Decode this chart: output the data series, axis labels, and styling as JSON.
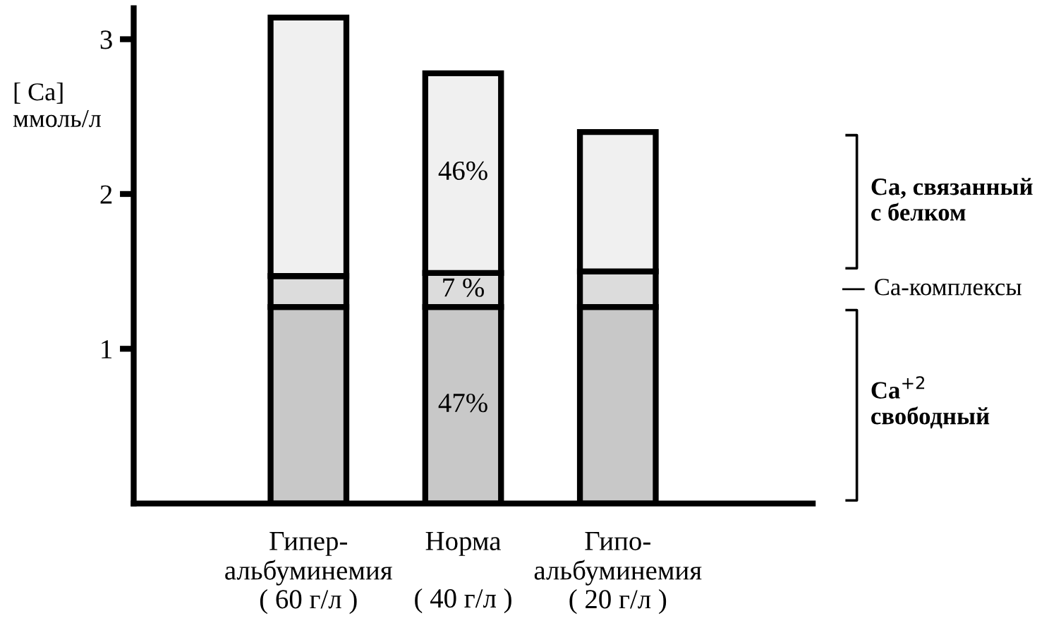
{
  "chart_data": {
    "type": "bar",
    "stacked": true,
    "ylabel": "[ Ca]\nммоль/л",
    "categories": [
      "Гипер-\nальбуминемия\n( 60 г/л )",
      "Норма\n\n( 40 г/л )",
      "Гипо-\nальбуминемия\n( 20 г/л )"
    ],
    "series": [
      {
        "name": "Ca$^{+2}$\nсвободный",
        "color": "#c8c8c8",
        "values": [
          1.27,
          1.27,
          1.27
        ]
      },
      {
        "name": "Ca-комплексы",
        "color": "#dcdcdc",
        "values": [
          0.2,
          0.22,
          0.23
        ]
      },
      {
        "name": "Ca, связанный\nс белком",
        "color": "#f0f0f0",
        "values": [
          1.67,
          1.29,
          0.9
        ]
      }
    ],
    "annotations": [
      "47%",
      "7 %",
      "46%"
    ],
    "ylim": [
      0,
      3.2
    ],
    "yticks": [
      1,
      2,
      3
    ],
    "grid": false,
    "legend": "right"
  }
}
